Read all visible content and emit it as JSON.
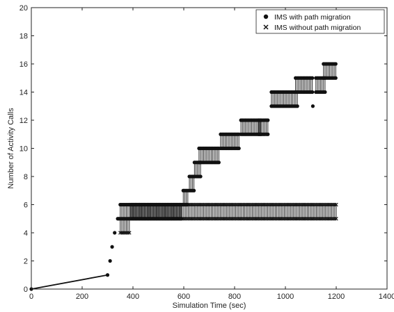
{
  "chart_data": {
    "type": "scatter",
    "title": "",
    "xlabel": "Simulation Time (sec)",
    "ylabel": "Number of Activity Calls",
    "xlim": [
      0,
      1400
    ],
    "ylim": [
      0,
      20
    ],
    "x_ticks": [
      0,
      200,
      400,
      600,
      800,
      1000,
      1200,
      1400
    ],
    "y_ticks": [
      0,
      2,
      4,
      6,
      8,
      10,
      12,
      14,
      16,
      18,
      20
    ],
    "x_tick_labels": [
      "0",
      "200",
      "400",
      "600",
      "800",
      "1000",
      "1200",
      "1400"
    ],
    "y_tick_labels": [
      "0",
      "2",
      "4",
      "6",
      "8",
      "10",
      "12",
      "14",
      "16",
      "18",
      "20"
    ],
    "grid": false,
    "legend_position": "top-right",
    "colors": {
      "series": "#111111",
      "axis": "#222222",
      "background": "#ffffff"
    },
    "series": [
      {
        "name": "IMS with path migration",
        "marker": "circle",
        "segments": [
          {
            "x_start": 0,
            "x_end": 0,
            "step": 1,
            "low": 0,
            "high": 0
          },
          {
            "x_start": 300,
            "x_end": 300,
            "step": 1,
            "low": 1,
            "high": 1
          },
          {
            "x_start": 310,
            "x_end": 310,
            "step": 1,
            "low": 2,
            "high": 2
          },
          {
            "x_start": 318,
            "x_end": 318,
            "step": 1,
            "low": 3,
            "high": 3
          },
          {
            "x_start": 328,
            "x_end": 328,
            "step": 1,
            "low": 4,
            "high": 4
          },
          {
            "x_start": 340,
            "x_end": 345,
            "step": 5,
            "low": 5,
            "high": 5
          },
          {
            "x_start": 350,
            "x_end": 590,
            "step": 6,
            "low": 5,
            "high": 6
          },
          {
            "x_start": 598,
            "x_end": 620,
            "step": 6,
            "low": 6,
            "high": 7
          },
          {
            "x_start": 622,
            "x_end": 640,
            "step": 6,
            "low": 7,
            "high": 8
          },
          {
            "x_start": 642,
            "x_end": 670,
            "step": 6,
            "low": 8,
            "high": 9
          },
          {
            "x_start": 660,
            "x_end": 740,
            "step": 6,
            "low": 9,
            "high": 10
          },
          {
            "x_start": 745,
            "x_end": 820,
            "step": 6,
            "low": 10,
            "high": 11
          },
          {
            "x_start": 825,
            "x_end": 905,
            "step": 6,
            "low": 11,
            "high": 12
          },
          {
            "x_start": 895,
            "x_end": 935,
            "step": 6,
            "low": 11,
            "high": 12
          },
          {
            "x_start": 945,
            "x_end": 1050,
            "step": 6,
            "low": 13,
            "high": 14
          },
          {
            "x_start": 1040,
            "x_end": 1110,
            "step": 6,
            "low": 14,
            "high": 15
          },
          {
            "x_start": 1108,
            "x_end": 1108,
            "step": 1,
            "low": 13,
            "high": 13
          },
          {
            "x_start": 1120,
            "x_end": 1160,
            "step": 6,
            "low": 14,
            "high": 15
          },
          {
            "x_start": 1150,
            "x_end": 1200,
            "step": 6,
            "low": 15,
            "high": 16
          }
        ]
      },
      {
        "name": "IMS without path migration",
        "marker": "x",
        "segments": [
          {
            "x_start": 350,
            "x_end": 390,
            "step": 6,
            "low": 4,
            "high": 5
          },
          {
            "x_start": 390,
            "x_end": 1200,
            "step": 6,
            "low": 5,
            "high": 6
          }
        ]
      }
    ],
    "line_points": [
      [
        0,
        0
      ],
      [
        300,
        1
      ]
    ]
  }
}
